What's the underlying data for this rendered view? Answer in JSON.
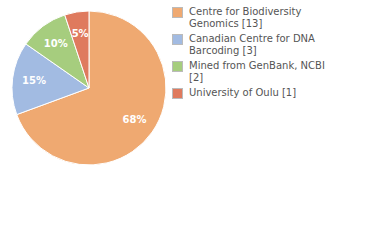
{
  "chart_data": {
    "type": "pie",
    "categories": [
      "Centre for Biodiversity Genomics [13]",
      "Canadian Centre for DNA Barcoding [3]",
      "Mined from GenBank, NCBI [2]",
      "University of Oulu [1]"
    ],
    "values": [
      68,
      15,
      10,
      5
    ],
    "value_labels": [
      "68%",
      "15%",
      "10%",
      "5%"
    ],
    "colors": [
      "#efa971",
      "#a2bbe2",
      "#a6cd7e",
      "#df7a5e"
    ],
    "data_labels": true,
    "legend": "right"
  }
}
